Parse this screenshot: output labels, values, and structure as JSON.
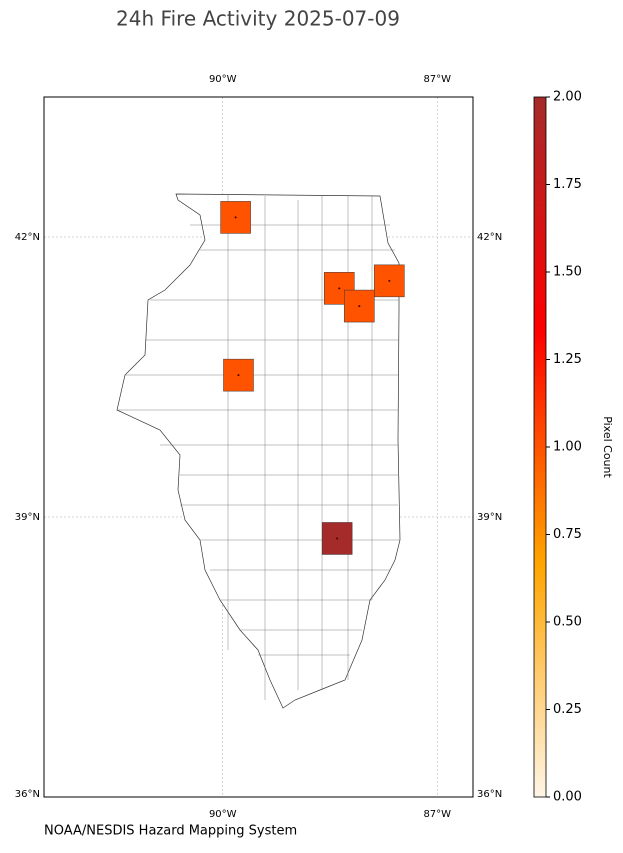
{
  "chart_data": {
    "type": "map",
    "title": "24h Fire Activity 2025-07-09",
    "source": "NOAA/NESDIS Hazard Mapping System",
    "xlim": [
      -92.5,
      -86.5
    ],
    "ylim": [
      36,
      43.5
    ],
    "xticks": [
      {
        "value": -90,
        "label": "90°W"
      },
      {
        "value": -87,
        "label": "87°W"
      }
    ],
    "yticks": [
      {
        "value": 36,
        "label": "36°N"
      },
      {
        "value": 39,
        "label": "39°N"
      },
      {
        "value": 42,
        "label": "42°N"
      }
    ],
    "grid": true,
    "x": [
      -89.82,
      -88.37,
      -88.09,
      -87.67,
      -89.78,
      -88.4
    ],
    "y": [
      42.21,
      41.45,
      41.26,
      41.53,
      40.52,
      38.77
    ],
    "values": [
      1,
      1,
      1,
      1,
      1,
      2
    ],
    "colorbar": {
      "label": "Pixel Count",
      "lim": [
        0,
        2
      ],
      "colors": [
        "#fff5e6",
        "#ffa500",
        "#ff0000",
        "#a52a2a"
      ],
      "ticks": [
        {
          "value": 0,
          "label": "0.00"
        },
        {
          "value": 0.25,
          "label": "0.25"
        },
        {
          "value": 0.5,
          "label": "0.50"
        },
        {
          "value": 0.75,
          "label": "0.75"
        },
        {
          "value": 1,
          "label": "1.00"
        },
        {
          "value": 1.25,
          "label": "1.25"
        },
        {
          "value": 1.5,
          "label": "1.50"
        },
        {
          "value": 1.75,
          "label": "1.75"
        },
        {
          "value": 2,
          "label": "2.00"
        }
      ]
    }
  }
}
